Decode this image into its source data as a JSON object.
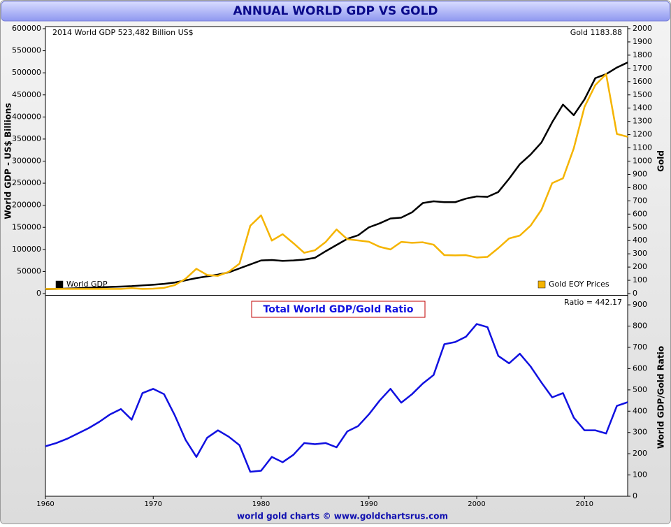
{
  "title": "ANNUAL WORLD GDP VS GOLD",
  "footer": "world gold charts © www.goldchartsrus.com",
  "chart_data": [
    {
      "type": "line",
      "annotations": [
        "2014 World GDP 523,482 Billion US$",
        "Gold 1183.88"
      ],
      "ylabel": "World GDP - US$ Billions",
      "y2label": "Gold",
      "x": [
        1960,
        1961,
        1962,
        1963,
        1964,
        1965,
        1966,
        1967,
        1968,
        1969,
        1970,
        1971,
        1972,
        1973,
        1974,
        1975,
        1976,
        1977,
        1978,
        1979,
        1980,
        1981,
        1982,
        1983,
        1984,
        1985,
        1986,
        1987,
        1988,
        1989,
        1990,
        1991,
        1992,
        1993,
        1994,
        1995,
        1996,
        1997,
        1998,
        1999,
        2000,
        2001,
        2002,
        2003,
        2004,
        2005,
        2006,
        2007,
        2008,
        2009,
        2010,
        2011,
        2012,
        2013,
        2014
      ],
      "xlim": [
        1960,
        2014
      ],
      "ylim": [
        0,
        600000
      ],
      "yticks": [
        0,
        50000,
        100000,
        150000,
        200000,
        250000,
        300000,
        350000,
        400000,
        450000,
        500000,
        550000,
        600000
      ],
      "y2lim": [
        0,
        2000
      ],
      "y2ticks": [
        0,
        100,
        200,
        300,
        400,
        500,
        600,
        700,
        800,
        900,
        1000,
        1100,
        1200,
        1300,
        1400,
        1500,
        1600,
        1700,
        1800,
        1900,
        2000
      ],
      "series": [
        {
          "name": "World GDP",
          "color": "#000000",
          "legend": "lower left",
          "values": [
            10000,
            10500,
            11200,
            12000,
            13000,
            14000,
            15000,
            15800,
            16800,
            18500,
            20000,
            22000,
            25000,
            30000,
            35000,
            39000,
            43000,
            48000,
            57000,
            66000,
            75000,
            76000,
            74000,
            75000,
            77000,
            81000,
            96000,
            110000,
            124000,
            132000,
            150000,
            159000,
            170000,
            172000,
            184000,
            205000,
            209000,
            207000,
            207000,
            215000,
            220000,
            219000,
            230000,
            260000,
            293000,
            315000,
            342000,
            388000,
            428000,
            404000,
            440000,
            488000,
            497000,
            512000,
            523482
          ]
        },
        {
          "name": "Gold EOY Prices",
          "color": "#f5b400",
          "axis": "y2",
          "legend": "lower right",
          "values": [
            35,
            35,
            35,
            35,
            35,
            35,
            35,
            35,
            41,
            35,
            37,
            43,
            64,
            112,
            187,
            140,
            134,
            164,
            226,
            512,
            590,
            400,
            448,
            380,
            308,
            327,
            390,
            484,
            410,
            401,
            391,
            353,
            333,
            390,
            383,
            387,
            369,
            290,
            288,
            290,
            272,
            277,
            343,
            416,
            438,
            513,
            632,
            834,
            870,
            1096,
            1410,
            1574,
            1657,
            1205,
            1183.88
          ]
        }
      ]
    },
    {
      "type": "line",
      "title": "Total World GDP/Gold Ratio",
      "annotations": [
        "Ratio = 442.17"
      ],
      "y2label": "World GDP/Gold Ratio",
      "x": [
        1960,
        1961,
        1962,
        1963,
        1964,
        1965,
        1966,
        1967,
        1968,
        1969,
        1970,
        1971,
        1972,
        1973,
        1974,
        1975,
        1976,
        1977,
        1978,
        1979,
        1980,
        1981,
        1982,
        1983,
        1984,
        1985,
        1986,
        1987,
        1988,
        1989,
        1990,
        1991,
        1992,
        1993,
        1994,
        1995,
        1996,
        1997,
        1998,
        1999,
        2000,
        2001,
        2002,
        2003,
        2004,
        2005,
        2006,
        2007,
        2008,
        2009,
        2010,
        2011,
        2012,
        2013,
        2014
      ],
      "xlim": [
        1960,
        2014
      ],
      "xticks": [
        1960,
        1970,
        1980,
        1990,
        2000,
        2010
      ],
      "y2lim": [
        0,
        930
      ],
      "y2ticks": [
        0,
        100,
        200,
        300,
        400,
        500,
        600,
        700,
        800,
        900
      ],
      "series": [
        {
          "name": "World GDP/Gold Ratio",
          "color": "#1010e0",
          "axis": "y2",
          "values": [
            235,
            250,
            270,
            295,
            320,
            350,
            385,
            410,
            360,
            485,
            505,
            480,
            380,
            265,
            185,
            275,
            310,
            280,
            240,
            115,
            120,
            185,
            160,
            195,
            250,
            245,
            250,
            230,
            305,
            330,
            385,
            450,
            505,
            440,
            480,
            530,
            570,
            715,
            725,
            750,
            810,
            795,
            660,
            625,
            670,
            610,
            535,
            465,
            485,
            370,
            310,
            310,
            295,
            425,
            442.17
          ]
        }
      ]
    }
  ]
}
